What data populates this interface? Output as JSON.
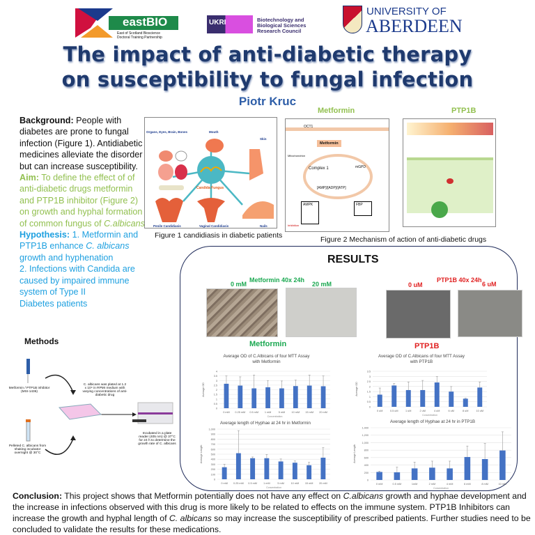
{
  "logos": {
    "eastbio": {
      "name": "eastBIO",
      "subtitle_line1": "East of Scotland Bioscience",
      "subtitle_line2": "Doctoral Training Partnership"
    },
    "ukri": {
      "mark": "UKRI",
      "line1": "Biotechnology and",
      "line2": "Biological Sciences",
      "line3": "Research Council"
    },
    "aberdeen": {
      "line1": "UNIVERSITY OF",
      "line2": "ABERDEEN"
    }
  },
  "title": {
    "line1": "The impact of anti-diabetic therapy",
    "line2": "on susceptibility to fungal infection"
  },
  "author": "Piotr Kruc",
  "intro": {
    "background_label": "Background:",
    "background_text": " People with diabetes are prone to fungal infection (Figure 1). Antidiabetic medicines alleviate the disorder but can increase susceptibility.",
    "aim_label": "Aim:",
    "aim_text": " To define the effect of  of anti-diabetic drugs metformin and PTP1B inhibitor (Figure 2) on growth and hyphal formation of common fungus of ",
    "aim_species": "C.albicans",
    "hyp_label": "Hypothesis:",
    "hyp_text1": " 1. Metformin and PTP1B enhance ",
    "hyp_species": "C. albicans",
    "hyp_text2": " growth and hyphenation",
    "hyp_text3": "2. Infections with Candida are caused by impaired immune system of Type II",
    "hyp_text4": "Diabetes patients"
  },
  "figure1": {
    "caption": "Figure 1 candidiasis in diabetic patients",
    "center": "Candida Fungus",
    "labels": [
      "Organs, Eyes, Brain, Bones",
      "Mouth",
      "Skin",
      "Penile Candidiasis",
      "Vaginal Candidiasis",
      "Nails"
    ]
  },
  "figure2": {
    "caption": "Figure 2 Mechanism of action of anti-diabetic drugs",
    "metformin_title": "Metformin",
    "ptp1b_title": "PTP1B",
    "metformin_labels": {
      "transporter": "OCT1",
      "drug": "Metformin",
      "complex": "Complex 1",
      "target": "mGPD",
      "amp": "[AMP]/[ADP]/[ATP]",
      "ampk": "AMPK",
      "fbp": "FBP",
      "mito": "Mitochondrion",
      "inhibition": "Inhibition"
    }
  },
  "methods": {
    "title": "Methods",
    "step_drug": "Metformin / PTP1B inhibitor (MSI-1436)",
    "step_culture": "Pelleted C. albicans from shaking incubator overnight @ 30°C",
    "step_plate": "C. albicans was plated at 1.2 x 10⁴ in RPMI medium with varying concentrations of anti-diabetic drug",
    "step_reader": "Incubated in a plate reader (405 nm) @ 37°C for 24 h to determine the growth rate of C. albicans"
  },
  "results": {
    "title": "RESULTS",
    "metformin_micro": {
      "title": "Metformin 40x 24h",
      "left": "0 mM",
      "right": "20 mM"
    },
    "ptp1b_micro": {
      "title": "PTP1B 40x 24h",
      "left": "0 uM",
      "right": "6 uM"
    },
    "metformin_heading": "Metformin",
    "ptp1b_heading": "PTP1B"
  },
  "colors": {
    "title": "#1f3a6e",
    "metformin": "#1aa850",
    "ptp1b": "#e02020",
    "bar": "#4472c4",
    "aim": "#92c050",
    "hypothesis": "#1ea0e0"
  },
  "chart_data": [
    {
      "type": "bar",
      "title": "Average OD of C.Albicans of four MTT Assay with Metformin",
      "xlabel": "Concentration",
      "ylabel": "Average OD",
      "categories": [
        "0 mM",
        "0.25 mM",
        "0.5 mM",
        "1 mM",
        "5 mM",
        "10 mM",
        "15 mM",
        "20 mM"
      ],
      "values": [
        2.65,
        2.45,
        2.15,
        2.27,
        2.15,
        2.4,
        2.45,
        2.38
      ],
      "errors": [
        0.85,
        0.95,
        1.45,
        0.73,
        0.8,
        0.65,
        1.15,
        1.12
      ],
      "ylim": [
        0,
        4
      ],
      "ystep": 0.5,
      "grid": true
    },
    {
      "type": "bar",
      "title": "Average length of Hyphae at 24 hr in Metformin",
      "xlabel": "Concentration",
      "ylabel": "Average Length",
      "categories": [
        "0 mM",
        "0.25 mM",
        "0.5 mM",
        "1 mM",
        "5 mM",
        "10 mM",
        "15 mM",
        "20 mM"
      ],
      "values": [
        240,
        520,
        420,
        420,
        355,
        330,
        280,
        430
      ],
      "errors": [
        60,
        450,
        25,
        75,
        50,
        35,
        60,
        200
      ],
      "ylim": [
        0,
        1000
      ],
      "ystep": 100,
      "grid": true
    },
    {
      "type": "bar",
      "title": "Average OD of C.Albicans of four MTT Assay with PTP1B",
      "xlabel": "Concentration",
      "ylabel": "Average OD",
      "categories": [
        "0 uM",
        "0.5 uM",
        "1 uM",
        "2 uM",
        "4 uM",
        "6 uM",
        "8 uM",
        "10 uM"
      ],
      "values": [
        1.2,
        2.1,
        1.65,
        1.65,
        2.4,
        1.5,
        0.8,
        1.9
      ],
      "errors": [
        0.65,
        0.2,
        0.8,
        0.95,
        0.6,
        0.5,
        0.05,
        0.55
      ],
      "ylim": [
        0,
        3.5
      ],
      "ystep": 0.5,
      "grid": true
    },
    {
      "type": "bar",
      "title": "Average length of Hyphae at 24 hr in PTP1B",
      "xlabel": "Concentration",
      "ylabel": "Average Length",
      "categories": [
        "0 mM",
        "0.5 mM",
        "1mM",
        "2 mM",
        "4 mM",
        "6 mM",
        "8 mM",
        "10 mM"
      ],
      "values": [
        215,
        205,
        310,
        330,
        310,
        615,
        560,
        790
      ],
      "errors": [
        20,
        140,
        170,
        175,
        195,
        295,
        420,
        500
      ],
      "ylim": [
        0,
        1400
      ],
      "ystep": 200,
      "grid": true
    }
  ],
  "conclusion": {
    "label": "Conclusion:",
    "t1": " This project shows that Metformin  potentially does not have any effect on ",
    "s1": "C.albicans",
    "t2": " growth and hyphae development and the increase in infections observed with this drug is more likely to be related to effects on the immune system. PTP1B Inhibitors can increase the growth and hyphal length of ",
    "s2": "C. albicans",
    "t3": " so may increase the susceptibility of prescribed patients. Further studies need to be concluded to validate the results for these medications."
  }
}
